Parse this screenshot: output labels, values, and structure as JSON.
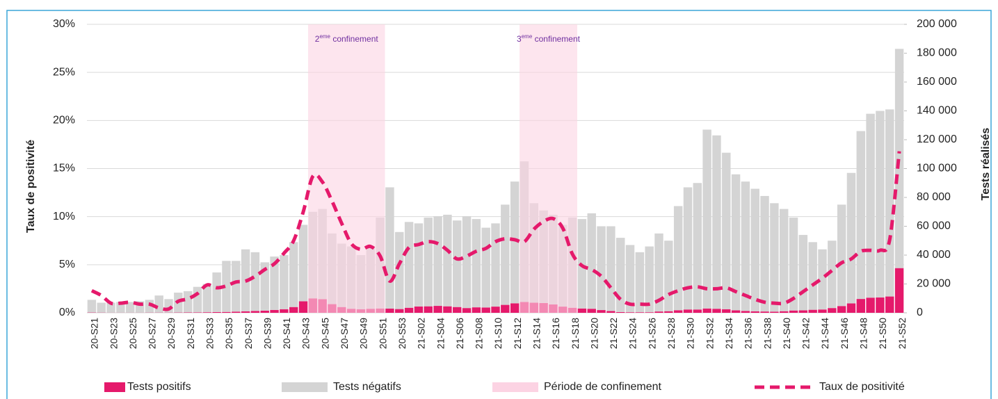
{
  "chart_data": {
    "type": "bar",
    "stacked": true,
    "y_label": "Taux de positivité",
    "y2_label": "Tests réalisés",
    "categories": [
      "20-S21",
      null,
      "20-S23",
      null,
      "20-S25",
      null,
      "20-S27",
      null,
      "20-S29",
      null,
      "20-S31",
      null,
      "20-S33",
      null,
      "20-S35",
      null,
      "20-S37",
      null,
      "20-S39",
      null,
      "20-S41",
      null,
      "20-S43",
      null,
      "20-S45",
      null,
      "20-S47",
      null,
      "20-S49",
      null,
      "20-S51",
      null,
      "20-S53",
      null,
      "21-S02",
      null,
      "21-S04",
      null,
      "21-S06",
      null,
      "21-S08",
      null,
      "21-S10",
      null,
      "21-S12",
      null,
      "21-S14",
      null,
      "21-S16",
      null,
      "21-S18",
      null,
      "21-S20",
      null,
      "21-S22",
      null,
      "21-S24",
      null,
      "21-S26",
      null,
      "21-S28",
      null,
      "21-S30",
      null,
      "21-S32",
      null,
      "21-S34",
      null,
      "21-S36",
      null,
      "21-S38",
      null,
      "21-S40",
      null,
      "21-S42",
      null,
      "21-S44",
      null,
      "21-S46",
      null,
      "21-S48",
      null,
      "21-S50",
      null,
      "21-S52"
    ],
    "series": [
      {
        "name": "Tests positifs",
        "type": "bar",
        "axis": "y2",
        "color": "#e5196b",
        "values": [
          200,
          150,
          100,
          100,
          100,
          100,
          150,
          150,
          150,
          200,
          250,
          300,
          400,
          500,
          600,
          800,
          1000,
          1300,
          1500,
          2000,
          2500,
          4000,
          8000,
          10000,
          9500,
          6000,
          4000,
          2800,
          2500,
          2800,
          3000,
          2900,
          2600,
          3500,
          4400,
          4500,
          4800,
          4500,
          4000,
          3300,
          3800,
          3700,
          4300,
          5500,
          6600,
          7500,
          7000,
          6800,
          5800,
          4300,
          3500,
          3000,
          2800,
          1900,
          1200,
          500,
          400,
          400,
          400,
          900,
          1100,
          1800,
          2300,
          2300,
          3000,
          2800,
          2500,
          1700,
          1300,
          1000,
          900,
          800,
          1100,
          1600,
          1700,
          2100,
          2300,
          3300,
          4700,
          6500,
          9600,
          10500,
          10600,
          11300,
          31000
        ]
      },
      {
        "name": "Tests négatifs",
        "type": "bar",
        "axis": "y2",
        "color": "#d4d4d4",
        "values": [
          8800,
          6850,
          6900,
          7400,
          7400,
          7900,
          8850,
          11850,
          9350,
          13800,
          14750,
          17700,
          19600,
          27500,
          35400,
          35200,
          43000,
          40700,
          33500,
          37000,
          37500,
          45000,
          53000,
          60000,
          62500,
          49000,
          44000,
          43200,
          37500,
          43200,
          63000,
          84100,
          53400,
          59500,
          57600,
          61500,
          62200,
          63500,
          60000,
          63700,
          61200,
          55300,
          57700,
          69500,
          84400,
          97500,
          69000,
          64200,
          62200,
          56700,
          62500,
          62000,
          66200,
          58100,
          58800,
          51500,
          46600,
          41600,
          45600,
          54100,
          48900,
          72200,
          84700,
          87700,
          124000,
          120200,
          108500,
          94300,
          89700,
          85000,
          80100,
          75200,
          70900,
          64400,
          52300,
          46900,
          41700,
          46700,
          70300,
          90500,
          116400,
          127500,
          129400,
          129700,
          152000
        ]
      },
      {
        "name": "Taux de positivité",
        "type": "line",
        "axis": "y",
        "color": "#e5196b",
        "dashed": true,
        "values": [
          2.3,
          1.8,
          1.0,
          1.0,
          1.1,
          0.9,
          0.9,
          0.5,
          0.4,
          1.2,
          1.45,
          2.0,
          2.9,
          2.6,
          2.8,
          3.2,
          3.3,
          3.8,
          4.5,
          5.1,
          6.2,
          7.5,
          10.5,
          14.2,
          13.6,
          11.6,
          9.3,
          7.2,
          6.6,
          6.9,
          5.9,
          3.3,
          5.1,
          6.8,
          7.1,
          7.4,
          7.2,
          6.5,
          5.6,
          5.9,
          6.4,
          6.7,
          7.4,
          7.7,
          7.6,
          7.4,
          8.7,
          9.5,
          9.8,
          8.8,
          6.1,
          4.9,
          4.5,
          3.8,
          2.6,
          1.4,
          0.9,
          0.9,
          0.9,
          1.3,
          1.9,
          2.3,
          2.6,
          2.7,
          2.5,
          2.5,
          2.6,
          2.2,
          1.8,
          1.4,
          1.1,
          1.0,
          1.0,
          1.5,
          2.2,
          2.9,
          3.6,
          4.4,
          5.2,
          5.6,
          6.4,
          6.5,
          6.5,
          7.6,
          16.8
        ]
      }
    ],
    "periods": [
      {
        "start": 23,
        "end": 30,
        "text": "2",
        "sup": "eme",
        "rest": " confinement"
      },
      {
        "start": 45,
        "end": 50,
        "text": "3",
        "sup": "eme",
        "rest": " confinement"
      }
    ],
    "period_legend": "Période de confinement",
    "period_color": "#fcd3e3",
    "ylim": [
      0,
      30
    ],
    "yticks": [
      {
        "value": 0,
        "label": "0%"
      },
      {
        "value": 5,
        "label": "5%"
      },
      {
        "value": 10,
        "label": "10%"
      },
      {
        "value": 15,
        "label": "15%"
      },
      {
        "value": 20,
        "label": "20%"
      },
      {
        "value": 25,
        "label": "25%"
      },
      {
        "value": 30,
        "label": "30%"
      }
    ],
    "y2lim": [
      0,
      200000
    ],
    "y2ticks": [
      0,
      {
        "value": 20000,
        "label": "20 000"
      },
      {
        "value": 40000,
        "label": "40 000"
      },
      {
        "value": 60000,
        "label": "60 000"
      },
      {
        "value": 80000,
        "label": "80 000"
      },
      {
        "value": 100000,
        "label": "100 000"
      },
      {
        "value": 120000,
        "label": "120 000"
      },
      {
        "value": 140000,
        "label": "140 000"
      },
      {
        "value": 160000,
        "label": "160 000"
      },
      {
        "value": 180000,
        "label": "180 000"
      },
      {
        "value": 200000,
        "label": "200 000"
      }
    ],
    "grid": true,
    "legend": "bottom"
  }
}
